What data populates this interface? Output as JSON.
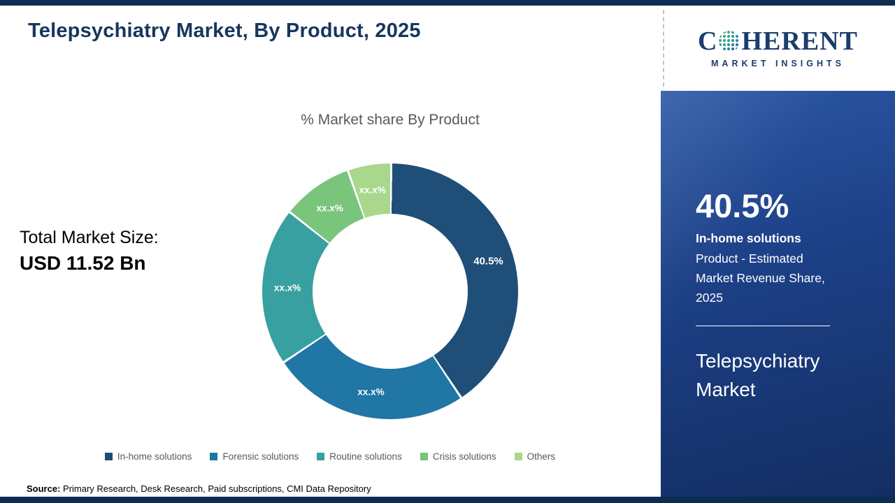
{
  "header": {
    "title": "Telepsychiatry Market, By Product, 2025"
  },
  "market": {
    "total_label": "Total Market Size:",
    "total_value": "USD 11.52 Bn"
  },
  "chart_data": {
    "type": "pie",
    "donut": true,
    "title": "% Market share By Product",
    "categories": [
      "In-home solutions",
      "Forensic solutions",
      "Routine solutions",
      "Crisis solutions",
      "Others"
    ],
    "display_values": [
      "40.5%",
      "xx.x%",
      "xx.x%",
      "xx.x%",
      "xx.x%"
    ],
    "estimated_pct": [
      40.5,
      25.0,
      20.0,
      9.0,
      5.5
    ],
    "colors": [
      "#1F4E79",
      "#2076A5",
      "#38A0A0",
      "#79C57B",
      "#A9D78C"
    ],
    "legend_position": "bottom",
    "annotation": "Total Market Size: USD 11.52 Bn"
  },
  "sidebar": {
    "logo": {
      "c": "C",
      "rest": "HERENT",
      "tagline": "MARKET INSIGHTS"
    },
    "stat_value": "40.5%",
    "stat_label": "In-home solutions",
    "stat_desc": "Product - Estimated Market Revenue Share, 2025",
    "panel_title": "Telepsychiatry Market"
  },
  "footer": {
    "source_label": "Source:",
    "source_text": " Primary Research, Desk Research, Paid subscriptions, CMI Data Repository"
  },
  "theme": {
    "brand_navy": "#17365d",
    "border_bar": "#0d2c52",
    "panel_blue": "#1c3f85"
  }
}
